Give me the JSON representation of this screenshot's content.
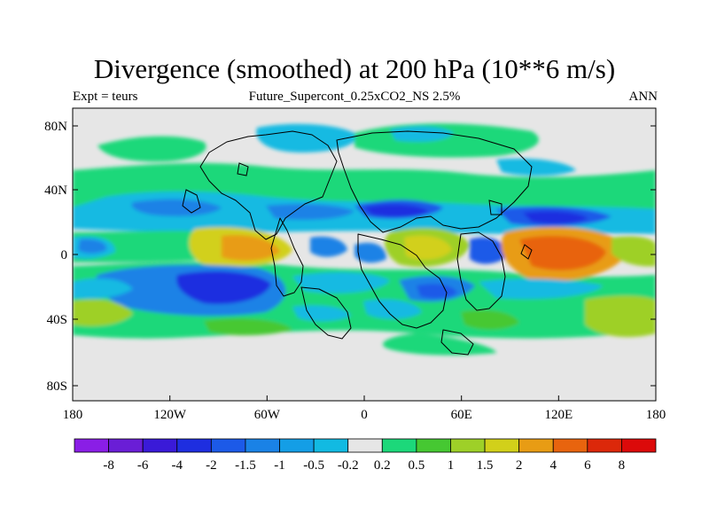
{
  "title": "Divergence (smoothed) at 200 hPa (10**6 m/s)",
  "subtitle_left": "Expt = teurs",
  "subtitle_center": "Future_Supercont_0.25xCO2_NS 2.5%",
  "subtitle_right": "ANN",
  "axes": {
    "y_ticks": [
      {
        "label": "80N"
      },
      {
        "label": "40N"
      },
      {
        "label": "0"
      },
      {
        "label": "40S"
      },
      {
        "label": "80S"
      }
    ],
    "x_ticks": [
      {
        "label": "180"
      },
      {
        "label": "120W"
      },
      {
        "label": "60W"
      },
      {
        "label": "0"
      },
      {
        "label": "60E"
      },
      {
        "label": "120E"
      },
      {
        "label": "180"
      }
    ]
  },
  "colors": {
    "land_outline": "#000000",
    "missing": "#e6e6e6"
  },
  "colorbar": {
    "colors": [
      "#8a1ee6",
      "#6a1ed6",
      "#3a1ad8",
      "#1e2ee0",
      "#1c5ae8",
      "#1a82e6",
      "#149ee6",
      "#12bae2",
      "#e6e6e6",
      "#1cd87a",
      "#46c832",
      "#9ed028",
      "#d2d01a",
      "#e89c14",
      "#e8640e",
      "#dc280a",
      "#dc0a0a"
    ],
    "labels": [
      "-8",
      "-6",
      "-4",
      "-2",
      "-1.5",
      "-1",
      "-0.5",
      "-0.2",
      "0.2",
      "0.5",
      "1",
      "1.5",
      "2",
      "4",
      "6",
      "8"
    ]
  }
}
